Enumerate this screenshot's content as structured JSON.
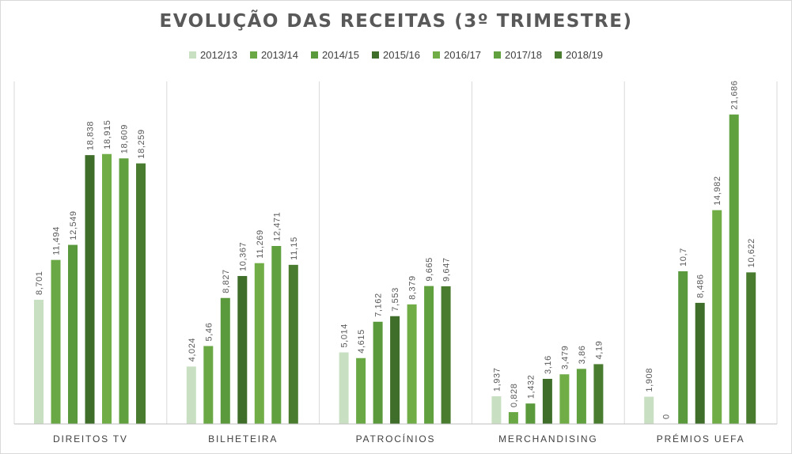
{
  "chart_data": {
    "type": "bar",
    "title": "EVOLUÇÃO DAS RECEITAS (3º TRIMESTRE)",
    "xlabel": "",
    "ylabel": "",
    "ylim": [
      0,
      24
    ],
    "grid": false,
    "legend_position": "top",
    "categories": [
      "DIREITOS TV",
      "BILHETEIRA",
      "PATROCÍNIOS",
      "MERCHANDISING",
      "PRÉMIOS UEFA"
    ],
    "series": [
      {
        "name": "2012/13",
        "color": "#c8dfc2",
        "values": [
          8.701,
          4.024,
          5.014,
          1.937,
          1.908
        ],
        "labels": [
          "8,701",
          "4,024",
          "5,014",
          "1,937",
          "1,908"
        ]
      },
      {
        "name": "2013/14",
        "color": "#6aa845",
        "values": [
          11.494,
          5.46,
          4.615,
          0.828,
          0
        ],
        "labels": [
          "11,494",
          "5,46",
          "4,615",
          "0,828",
          "0"
        ]
      },
      {
        "name": "2014/15",
        "color": "#5a9a3c",
        "values": [
          12.549,
          8.827,
          7.162,
          1.432,
          10.7
        ],
        "labels": [
          "12,549",
          "8,827",
          "7,162",
          "1,432",
          "10,7"
        ]
      },
      {
        "name": "2015/16",
        "color": "#3f6e2a",
        "values": [
          18.838,
          10.367,
          7.553,
          3.16,
          8.486
        ],
        "labels": [
          "18,838",
          "10,367",
          "7,553",
          "3,16",
          "8,486"
        ]
      },
      {
        "name": "2016/17",
        "color": "#70ad47",
        "values": [
          18.915,
          11.269,
          8.379,
          3.479,
          14.982
        ],
        "labels": [
          "18,915",
          "11,269",
          "8,379",
          "3,479",
          "14,982"
        ]
      },
      {
        "name": "2017/18",
        "color": "#61a03f",
        "values": [
          18.609,
          12.471,
          9.665,
          3.86,
          21.686
        ],
        "labels": [
          "18,609",
          "12,471",
          "9,665",
          "3,86",
          "21,686"
        ]
      },
      {
        "name": "2018/19",
        "color": "#4a7c30",
        "values": [
          18.259,
          11.15,
          9.647,
          4.19,
          10.622
        ],
        "labels": [
          "18,259",
          "11,15",
          "9,647",
          "4,19",
          "10,622"
        ]
      }
    ]
  }
}
